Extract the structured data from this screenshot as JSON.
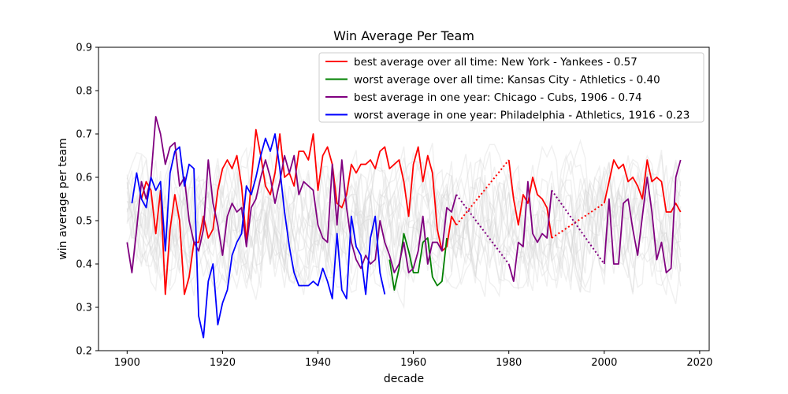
{
  "chart_data": {
    "type": "line",
    "title": "Win Average Per Team",
    "xlabel": "decade",
    "ylabel": "win average per team",
    "xlim": [
      1894,
      2022
    ],
    "ylim": [
      0.2,
      0.9
    ],
    "x_ticks": [
      1900,
      1920,
      1940,
      1960,
      1980,
      2000,
      2020
    ],
    "y_ticks": [
      0.2,
      0.3,
      0.4,
      0.5,
      0.6,
      0.7,
      0.8,
      0.9
    ],
    "grid": false,
    "legend_position": "top-right",
    "background_series": {
      "color": "#d3d3d3",
      "description_count": 16,
      "x_range": [
        1900,
        2016
      ]
    },
    "gaps": [
      {
        "from": 1969,
        "to": 1980
      },
      {
        "from": 1989,
        "to": 2000
      }
    ],
    "series": [
      {
        "name": "best average over all time: New York - Yankees - 0.57",
        "color": "#ff0000",
        "x": [
          1903,
          1904,
          1905,
          1906,
          1907,
          1908,
          1909,
          1910,
          1911,
          1912,
          1913,
          1914,
          1915,
          1916,
          1917,
          1918,
          1919,
          1920,
          1921,
          1922,
          1923,
          1924,
          1925,
          1926,
          1927,
          1928,
          1929,
          1930,
          1931,
          1932,
          1933,
          1934,
          1935,
          1936,
          1937,
          1938,
          1939,
          1940,
          1941,
          1942,
          1943,
          1944,
          1945,
          1946,
          1947,
          1948,
          1949,
          1950,
          1951,
          1952,
          1953,
          1954,
          1955,
          1956,
          1957,
          1958,
          1959,
          1960,
          1961,
          1962,
          1963,
          1964,
          1965,
          1966,
          1967,
          1968,
          1969,
          1980,
          1981,
          1982,
          1983,
          1984,
          1985,
          1986,
          1987,
          1988,
          1989,
          2000,
          2001,
          2002,
          2003,
          2004,
          2005,
          2006,
          2007,
          2008,
          2009,
          2010,
          2011,
          2012,
          2013,
          2014,
          2015,
          2016
        ],
        "y": [
          0.55,
          0.59,
          0.57,
          0.47,
          0.57,
          0.33,
          0.48,
          0.56,
          0.5,
          0.33,
          0.37,
          0.45,
          0.45,
          0.51,
          0.46,
          0.48,
          0.57,
          0.62,
          0.64,
          0.62,
          0.65,
          0.58,
          0.45,
          0.59,
          0.71,
          0.65,
          0.58,
          0.56,
          0.61,
          0.7,
          0.6,
          0.61,
          0.58,
          0.66,
          0.66,
          0.64,
          0.7,
          0.57,
          0.65,
          0.67,
          0.63,
          0.54,
          0.53,
          0.56,
          0.63,
          0.61,
          0.63,
          0.63,
          0.64,
          0.62,
          0.66,
          0.67,
          0.62,
          0.63,
          0.64,
          0.59,
          0.51,
          0.63,
          0.67,
          0.59,
          0.65,
          0.61,
          0.48,
          0.43,
          0.44,
          0.51,
          0.49,
          0.64,
          0.55,
          0.49,
          0.56,
          0.54,
          0.6,
          0.56,
          0.55,
          0.53,
          0.46,
          0.54,
          0.59,
          0.64,
          0.62,
          0.63,
          0.59,
          0.6,
          0.58,
          0.55,
          0.64,
          0.59,
          0.6,
          0.59,
          0.52,
          0.52,
          0.54,
          0.52
        ]
      },
      {
        "name": "worst average over all time: Kansas City - Athletics - 0.40",
        "color": "#008000",
        "x": [
          1955,
          1956,
          1957,
          1958,
          1959,
          1960,
          1961,
          1962,
          1963,
          1964,
          1965,
          1966,
          1967
        ],
        "y": [
          0.41,
          0.34,
          0.39,
          0.47,
          0.43,
          0.38,
          0.38,
          0.45,
          0.46,
          0.37,
          0.35,
          0.36,
          0.46
        ]
      },
      {
        "name": "best average in one year: Chicago - Cubs, 1906 - 0.74",
        "color": "#800080",
        "x": [
          1900,
          1901,
          1902,
          1903,
          1904,
          1905,
          1906,
          1907,
          1908,
          1909,
          1910,
          1911,
          1912,
          1913,
          1914,
          1915,
          1916,
          1917,
          1918,
          1919,
          1920,
          1921,
          1922,
          1923,
          1924,
          1925,
          1926,
          1927,
          1928,
          1929,
          1930,
          1931,
          1932,
          1933,
          1934,
          1935,
          1936,
          1937,
          1938,
          1939,
          1940,
          1941,
          1942,
          1943,
          1944,
          1945,
          1946,
          1947,
          1948,
          1949,
          1950,
          1951,
          1952,
          1953,
          1954,
          1955,
          1956,
          1957,
          1958,
          1959,
          1960,
          1961,
          1962,
          1963,
          1964,
          1965,
          1966,
          1967,
          1968,
          1969,
          1980,
          1981,
          1982,
          1983,
          1984,
          1985,
          1986,
          1987,
          1988,
          1989,
          2000,
          2001,
          2002,
          2003,
          2004,
          2005,
          2006,
          2007,
          2008,
          2009,
          2010,
          2011,
          2012,
          2013,
          2014,
          2015,
          2016
        ],
        "y": [
          0.45,
          0.38,
          0.48,
          0.59,
          0.55,
          0.6,
          0.74,
          0.7,
          0.63,
          0.67,
          0.68,
          0.58,
          0.6,
          0.5,
          0.45,
          0.43,
          0.48,
          0.64,
          0.54,
          0.49,
          0.42,
          0.51,
          0.54,
          0.52,
          0.53,
          0.44,
          0.53,
          0.55,
          0.6,
          0.64,
          0.6,
          0.54,
          0.59,
          0.65,
          0.61,
          0.65,
          0.56,
          0.59,
          0.58,
          0.57,
          0.49,
          0.46,
          0.45,
          0.63,
          0.49,
          0.64,
          0.53,
          0.45,
          0.41,
          0.39,
          0.42,
          0.4,
          0.41,
          0.5,
          0.45,
          0.42,
          0.38,
          0.4,
          0.45,
          0.38,
          0.39,
          0.43,
          0.51,
          0.4,
          0.45,
          0.45,
          0.43,
          0.53,
          0.52,
          0.56,
          0.4,
          0.36,
          0.45,
          0.44,
          0.59,
          0.47,
          0.45,
          0.47,
          0.46,
          0.57,
          0.4,
          0.55,
          0.4,
          0.4,
          0.54,
          0.55,
          0.48,
          0.42,
          0.51,
          0.6,
          0.52,
          0.41,
          0.45,
          0.38,
          0.39,
          0.6,
          0.64
        ]
      },
      {
        "name": "worst average in one year: Philadelphia - Athletics, 1916 - 0.23",
        "color": "#0000ff",
        "x": [
          1901,
          1902,
          1903,
          1904,
          1905,
          1906,
          1907,
          1908,
          1909,
          1910,
          1911,
          1912,
          1913,
          1914,
          1915,
          1916,
          1917,
          1918,
          1919,
          1920,
          1921,
          1922,
          1923,
          1924,
          1925,
          1926,
          1927,
          1928,
          1929,
          1930,
          1931,
          1932,
          1933,
          1934,
          1935,
          1936,
          1937,
          1938,
          1939,
          1940,
          1941,
          1942,
          1943,
          1944,
          1945,
          1946,
          1947,
          1948,
          1949,
          1950,
          1951,
          1952,
          1953,
          1954
        ],
        "y": [
          0.54,
          0.61,
          0.55,
          0.53,
          0.6,
          0.57,
          0.59,
          0.43,
          0.61,
          0.66,
          0.67,
          0.58,
          0.63,
          0.62,
          0.28,
          0.23,
          0.36,
          0.4,
          0.26,
          0.31,
          0.34,
          0.42,
          0.45,
          0.47,
          0.58,
          0.56,
          0.6,
          0.65,
          0.69,
          0.66,
          0.7,
          0.62,
          0.52,
          0.44,
          0.38,
          0.35,
          0.35,
          0.35,
          0.36,
          0.35,
          0.39,
          0.36,
          0.32,
          0.47,
          0.34,
          0.32,
          0.51,
          0.44,
          0.42,
          0.33,
          0.46,
          0.51,
          0.38,
          0.33
        ]
      }
    ]
  }
}
